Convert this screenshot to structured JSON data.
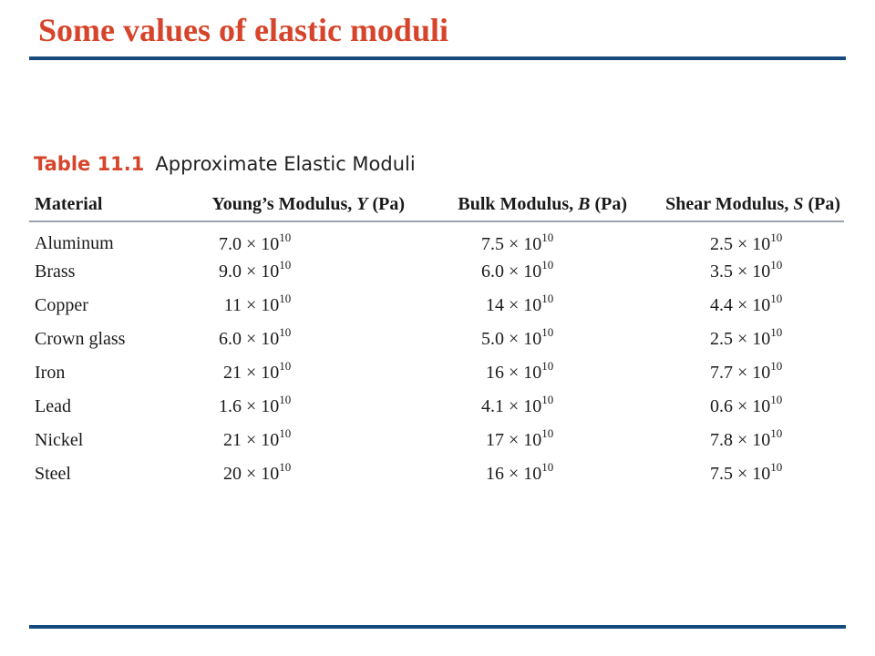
{
  "slide": {
    "title": "Some values of elastic moduli"
  },
  "table": {
    "label": "Table 11.1",
    "caption": "Approximate Elastic Moduli",
    "headers": {
      "material": "Material",
      "youngs_prefix": "Young’s Modulus, ",
      "youngs_symbol": "Y",
      "youngs_suffix": " (Pa)",
      "bulk_prefix": "Bulk Modulus, ",
      "bulk_symbol": "B",
      "bulk_suffix": " (Pa)",
      "shear_prefix": "Shear Modulus, ",
      "shear_symbol": "S",
      "shear_suffix": " (Pa)"
    },
    "times_sign": "×",
    "base": "10",
    "rows": [
      {
        "material": "Aluminum",
        "youngs": "7.0",
        "youngs_exp": "10",
        "bulk": "7.5",
        "bulk_exp": "10",
        "shear": "2.5",
        "shear_exp": "10"
      },
      {
        "material": "Brass",
        "youngs": "9.0",
        "youngs_exp": "10",
        "bulk": "6.0",
        "bulk_exp": "10",
        "shear": "3.5",
        "shear_exp": "10"
      },
      {
        "material": "Copper",
        "youngs": "11",
        "youngs_exp": "10",
        "bulk": "14",
        "bulk_exp": "10",
        "shear": "4.4",
        "shear_exp": "10"
      },
      {
        "material": "Crown glass",
        "youngs": "6.0",
        "youngs_exp": "10",
        "bulk": "5.0",
        "bulk_exp": "10",
        "shear": "2.5",
        "shear_exp": "10"
      },
      {
        "material": "Iron",
        "youngs": "21",
        "youngs_exp": "10",
        "bulk": "16",
        "bulk_exp": "10",
        "shear": "7.7",
        "shear_exp": "10"
      },
      {
        "material": "Lead",
        "youngs": "1.6",
        "youngs_exp": "10",
        "bulk": "4.1",
        "bulk_exp": "10",
        "shear": "0.6",
        "shear_exp": "10"
      },
      {
        "material": "Nickel",
        "youngs": "21",
        "youngs_exp": "10",
        "bulk": "17",
        "bulk_exp": "10",
        "shear": "7.8",
        "shear_exp": "10"
      },
      {
        "material": "Steel",
        "youngs": "20",
        "youngs_exp": "10",
        "bulk": "16",
        "bulk_exp": "10",
        "shear": "7.5",
        "shear_exp": "10"
      }
    ]
  },
  "colors": {
    "title": "#d6452b",
    "rule": "#174a7c",
    "table_label": "#d6452b",
    "header_rule": "#9aa3ad"
  }
}
